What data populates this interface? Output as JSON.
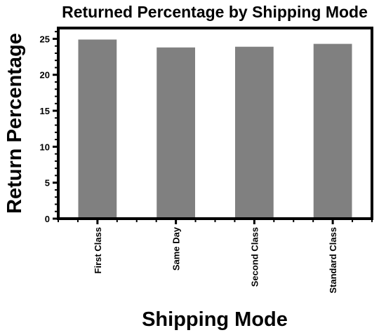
{
  "chart_data": {
    "type": "bar",
    "title": "Returned Percentage by Shipping Mode",
    "xlabel": "Shipping Mode",
    "ylabel": "Return Percentage",
    "categories": [
      "First Class",
      "Same Day",
      "Second Class",
      "Standard Class"
    ],
    "values": [
      24.9,
      23.8,
      23.9,
      24.3
    ],
    "ylim": [
      0,
      26.5
    ],
    "yticks": [
      0,
      5,
      10,
      15,
      20,
      25
    ],
    "grid": false,
    "legend": "none",
    "bar_color": "#808080",
    "frame_color": "#000000"
  }
}
